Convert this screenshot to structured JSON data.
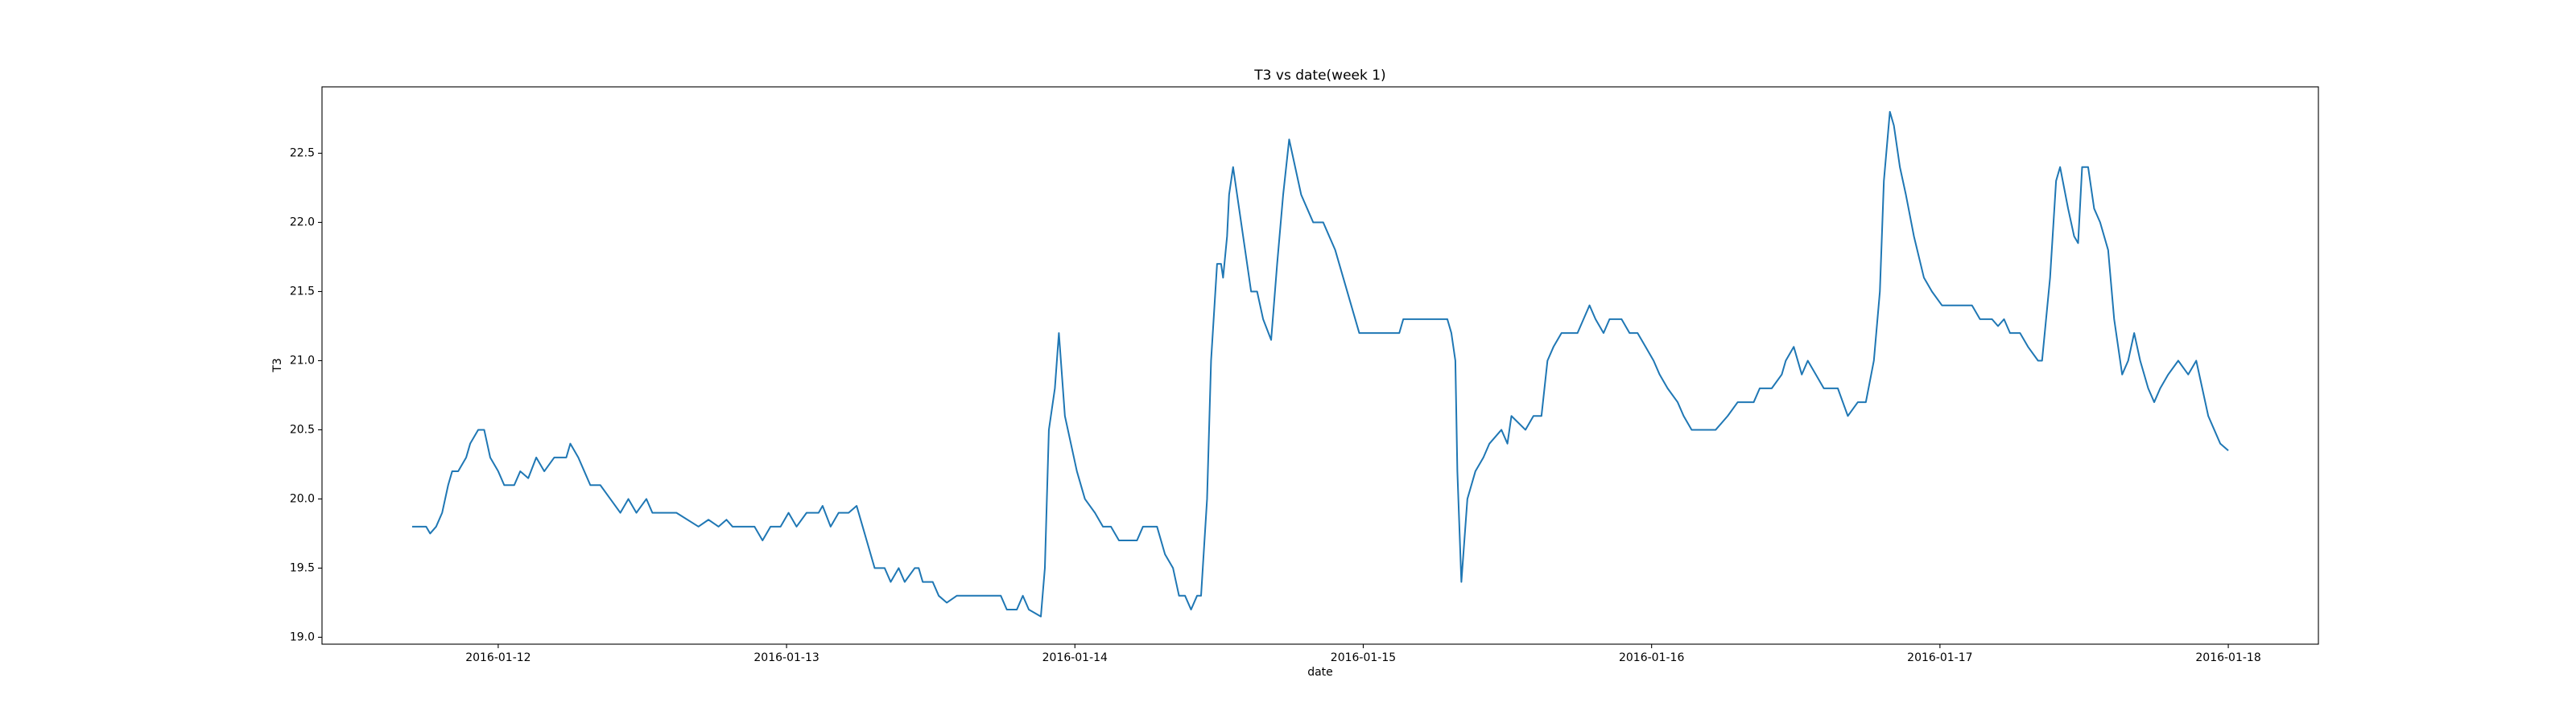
{
  "chart_data": {
    "type": "line",
    "title": "T3 vs date(week 1)",
    "x_label": "date",
    "y_label": "T3",
    "color": "#1f77b4",
    "x": [
      "2016-01-11 16:50",
      "2016-01-11 18:00",
      "2016-01-11 18:20",
      "2016-01-11 18:50",
      "2016-01-11 19:20",
      "2016-01-11 19:50",
      "2016-01-11 20:10",
      "2016-01-11 20:40",
      "2016-01-11 21:20",
      "2016-01-11 21:40",
      "2016-01-11 22:20",
      "2016-01-11 22:50",
      "2016-01-11 23:20",
      "2016-01-12 00:00",
      "2016-01-12 00:30",
      "2016-01-12 01:20",
      "2016-01-12 01:50",
      "2016-01-12 02:30",
      "2016-01-12 03:10",
      "2016-01-12 03:50",
      "2016-01-12 04:40",
      "2016-01-12 05:40",
      "2016-01-12 06:00",
      "2016-01-12 06:40",
      "2016-01-12 07:10",
      "2016-01-12 07:40",
      "2016-01-12 08:30",
      "2016-01-12 09:20",
      "2016-01-12 10:10",
      "2016-01-12 10:50",
      "2016-01-12 11:30",
      "2016-01-12 12:20",
      "2016-01-12 12:50",
      "2016-01-12 14:50",
      "2016-01-12 16:40",
      "2016-01-12 17:30",
      "2016-01-12 18:20",
      "2016-01-12 19:00",
      "2016-01-12 19:30",
      "2016-01-12 21:20",
      "2016-01-12 22:00",
      "2016-01-12 22:40",
      "2016-01-12 23:30",
      "2016-01-13 00:10",
      "2016-01-13 00:50",
      "2016-01-13 01:40",
      "2016-01-13 02:40",
      "2016-01-13 03:00",
      "2016-01-13 03:40",
      "2016-01-13 04:20",
      "2016-01-13 05:10",
      "2016-01-13 05:50",
      "2016-01-13 06:20",
      "2016-01-13 06:40",
      "2016-01-13 07:20",
      "2016-01-13 08:10",
      "2016-01-13 08:40",
      "2016-01-13 09:20",
      "2016-01-13 09:50",
      "2016-01-13 10:40",
      "2016-01-13 11:00",
      "2016-01-13 11:20",
      "2016-01-13 12:10",
      "2016-01-13 12:40",
      "2016-01-13 13:20",
      "2016-01-13 14:10",
      "2016-01-13 15:20",
      "2016-01-13 16:40",
      "2016-01-13 17:50",
      "2016-01-13 18:20",
      "2016-01-13 19:10",
      "2016-01-13 19:40",
      "2016-01-13 20:10",
      "2016-01-13 21:10",
      "2016-01-13 21:30",
      "2016-01-13 21:50",
      "2016-01-13 22:20",
      "2016-01-13 22:40",
      "2016-01-13 23:10",
      "2016-01-13 23:40",
      "2016-01-14 00:10",
      "2016-01-14 00:50",
      "2016-01-14 01:40",
      "2016-01-14 02:20",
      "2016-01-14 03:00",
      "2016-01-14 03:40",
      "2016-01-14 05:10",
      "2016-01-14 05:40",
      "2016-01-14 06:50",
      "2016-01-14 07:30",
      "2016-01-14 08:10",
      "2016-01-14 08:40",
      "2016-01-14 09:10",
      "2016-01-14 09:40",
      "2016-01-14 10:10",
      "2016-01-14 10:30",
      "2016-01-14 11:00",
      "2016-01-14 11:20",
      "2016-01-14 11:50",
      "2016-01-14 12:10",
      "2016-01-14 12:20",
      "2016-01-14 12:40",
      "2016-01-14 12:50",
      "2016-01-14 13:10",
      "2016-01-14 13:40",
      "2016-01-14 14:10",
      "2016-01-14 14:40",
      "2016-01-14 15:10",
      "2016-01-14 15:40",
      "2016-01-14 16:20",
      "2016-01-14 16:50",
      "2016-01-14 17:20",
      "2016-01-14 17:50",
      "2016-01-14 18:20",
      "2016-01-14 18:50",
      "2016-01-14 19:20",
      "2016-01-14 19:50",
      "2016-01-14 20:40",
      "2016-01-14 21:40",
      "2016-01-14 22:20",
      "2016-01-14 23:00",
      "2016-01-14 23:40",
      "2016-01-15 01:30",
      "2016-01-15 03:00",
      "2016-01-15 03:20",
      "2016-01-15 04:00",
      "2016-01-15 05:40",
      "2016-01-15 07:00",
      "2016-01-15 07:20",
      "2016-01-15 07:40",
      "2016-01-15 07:50",
      "2016-01-15 08:10",
      "2016-01-15 08:30",
      "2016-01-15 08:40",
      "2016-01-15 09:20",
      "2016-01-15 10:00",
      "2016-01-15 10:30",
      "2016-01-15 11:30",
      "2016-01-15 12:00",
      "2016-01-15 12:20",
      "2016-01-15 13:30",
      "2016-01-15 14:10",
      "2016-01-15 14:50",
      "2016-01-15 15:20",
      "2016-01-15 15:50",
      "2016-01-15 16:30",
      "2016-01-15 17:50",
      "2016-01-15 18:20",
      "2016-01-15 18:50",
      "2016-01-15 19:20",
      "2016-01-15 20:00",
      "2016-01-15 20:30",
      "2016-01-15 21:30",
      "2016-01-15 22:10",
      "2016-01-15 22:50",
      "2016-01-15 23:30",
      "2016-01-16 00:10",
      "2016-01-16 00:40",
      "2016-01-16 01:20",
      "2016-01-16 02:10",
      "2016-01-16 02:40",
      "2016-01-16 03:20",
      "2016-01-16 05:20",
      "2016-01-16 05:50",
      "2016-01-16 06:20",
      "2016-01-16 07:10",
      "2016-01-16 07:50",
      "2016-01-16 08:30",
      "2016-01-16 09:00",
      "2016-01-16 10:00",
      "2016-01-16 10:50",
      "2016-01-16 11:10",
      "2016-01-16 11:50",
      "2016-01-16 12:30",
      "2016-01-16 13:00",
      "2016-01-16 13:40",
      "2016-01-16 14:20",
      "2016-01-16 15:30",
      "2016-01-16 16:20",
      "2016-01-16 17:10",
      "2016-01-16 17:50",
      "2016-01-16 18:30",
      "2016-01-16 19:00",
      "2016-01-16 19:20",
      "2016-01-16 19:50",
      "2016-01-16 20:10",
      "2016-01-16 20:40",
      "2016-01-16 21:10",
      "2016-01-16 21:50",
      "2016-01-16 22:40",
      "2016-01-16 23:20",
      "2016-01-17 00:10",
      "2016-01-17 02:40",
      "2016-01-17 03:20",
      "2016-01-17 04:20",
      "2016-01-17 04:50",
      "2016-01-17 05:20",
      "2016-01-17 05:50",
      "2016-01-17 06:40",
      "2016-01-17 07:20",
      "2016-01-17 08:10",
      "2016-01-17 08:30",
      "2016-01-17 09:10",
      "2016-01-17 09:40",
      "2016-01-17 10:00",
      "2016-01-17 10:40",
      "2016-01-17 11:10",
      "2016-01-17 11:30",
      "2016-01-17 11:50",
      "2016-01-17 12:20",
      "2016-01-17 12:50",
      "2016-01-17 13:20",
      "2016-01-17 14:00",
      "2016-01-17 14:30",
      "2016-01-17 15:10",
      "2016-01-17 15:40",
      "2016-01-17 16:10",
      "2016-01-17 16:40",
      "2016-01-17 17:20",
      "2016-01-17 17:50",
      "2016-01-17 18:20",
      "2016-01-17 19:00",
      "2016-01-17 19:50",
      "2016-01-17 20:40",
      "2016-01-17 21:20",
      "2016-01-17 21:50",
      "2016-01-17 22:20",
      "2016-01-17 22:50",
      "2016-01-17 23:20",
      "2016-01-18 00:00"
    ],
    "values": [
      19.8,
      19.8,
      19.75,
      19.8,
      19.9,
      20.1,
      20.2,
      20.2,
      20.3,
      20.4,
      20.5,
      20.5,
      20.3,
      20.2,
      20.1,
      20.1,
      20.2,
      20.15,
      20.3,
      20.2,
      20.3,
      20.3,
      20.4,
      20.3,
      20.2,
      20.1,
      20.1,
      20.0,
      19.9,
      20.0,
      19.9,
      20.0,
      19.9,
      19.9,
      19.8,
      19.85,
      19.8,
      19.85,
      19.8,
      19.8,
      19.7,
      19.8,
      19.8,
      19.9,
      19.8,
      19.9,
      19.9,
      19.95,
      19.8,
      19.9,
      19.9,
      19.95,
      19.8,
      19.7,
      19.5,
      19.5,
      19.4,
      19.5,
      19.4,
      19.5,
      19.5,
      19.4,
      19.4,
      19.3,
      19.25,
      19.3,
      19.3,
      19.3,
      19.3,
      19.2,
      19.2,
      19.3,
      19.2,
      19.15,
      19.5,
      20.5,
      20.8,
      21.2,
      20.6,
      20.4,
      20.2,
      20.0,
      19.9,
      19.8,
      19.8,
      19.7,
      19.7,
      19.8,
      19.8,
      19.6,
      19.5,
      19.3,
      19.3,
      19.2,
      19.3,
      19.3,
      20.0,
      21.0,
      21.7,
      21.7,
      21.6,
      21.9,
      22.2,
      22.4,
      22.1,
      21.8,
      21.5,
      21.5,
      21.3,
      21.15,
      21.7,
      22.2,
      22.6,
      22.4,
      22.2,
      22.1,
      22.0,
      22.0,
      21.8,
      21.6,
      21.4,
      21.2,
      21.2,
      21.2,
      21.3,
      21.3,
      21.3,
      21.3,
      21.2,
      21.0,
      20.2,
      19.4,
      19.8,
      20.0,
      20.2,
      20.3,
      20.4,
      20.5,
      20.4,
      20.6,
      20.5,
      20.6,
      20.6,
      21.0,
      21.1,
      21.2,
      21.2,
      21.3,
      21.4,
      21.3,
      21.2,
      21.3,
      21.3,
      21.2,
      21.2,
      21.1,
      21.0,
      20.9,
      20.8,
      20.7,
      20.6,
      20.5,
      20.5,
      20.55,
      20.6,
      20.7,
      20.7,
      20.7,
      20.8,
      20.8,
      20.9,
      21.0,
      21.1,
      20.9,
      21.0,
      20.9,
      20.8,
      20.8,
      20.6,
      20.7,
      20.7,
      21.0,
      21.5,
      22.3,
      22.8,
      22.7,
      22.4,
      22.2,
      21.9,
      21.6,
      21.5,
      21.4,
      21.4,
      21.3,
      21.3,
      21.25,
      21.3,
      21.2,
      21.2,
      21.1,
      21.0,
      21.0,
      21.6,
      22.3,
      22.4,
      22.1,
      21.9,
      21.85,
      22.4,
      22.4,
      22.1,
      22.0,
      21.8,
      21.3,
      20.9,
      21.0,
      21.2,
      21.0,
      20.8,
      20.7,
      20.8,
      20.9,
      21.0,
      20.9,
      21.0,
      20.8,
      20.6,
      20.5,
      20.4,
      20.35
    ],
    "xlim": [
      "2016-01-11 09:20",
      "2016-01-18 07:30"
    ],
    "xticks": [
      "2016-01-12",
      "2016-01-13",
      "2016-01-14",
      "2016-01-15",
      "2016-01-16",
      "2016-01-17",
      "2016-01-18"
    ],
    "ylim": [
      18.95,
      22.98
    ],
    "yticks": [
      {
        "value": 19,
        "label": "19.0"
      },
      {
        "value": 19.5,
        "label": "19.5"
      },
      {
        "value": 20,
        "label": "20.0"
      },
      {
        "value": 20.5,
        "label": "20.5"
      },
      {
        "value": 21,
        "label": "21.0"
      },
      {
        "value": 21.5,
        "label": "21.5"
      },
      {
        "value": 22,
        "label": "22.0"
      },
      {
        "value": 22.5,
        "label": "22.5"
      }
    ],
    "grid": false
  }
}
